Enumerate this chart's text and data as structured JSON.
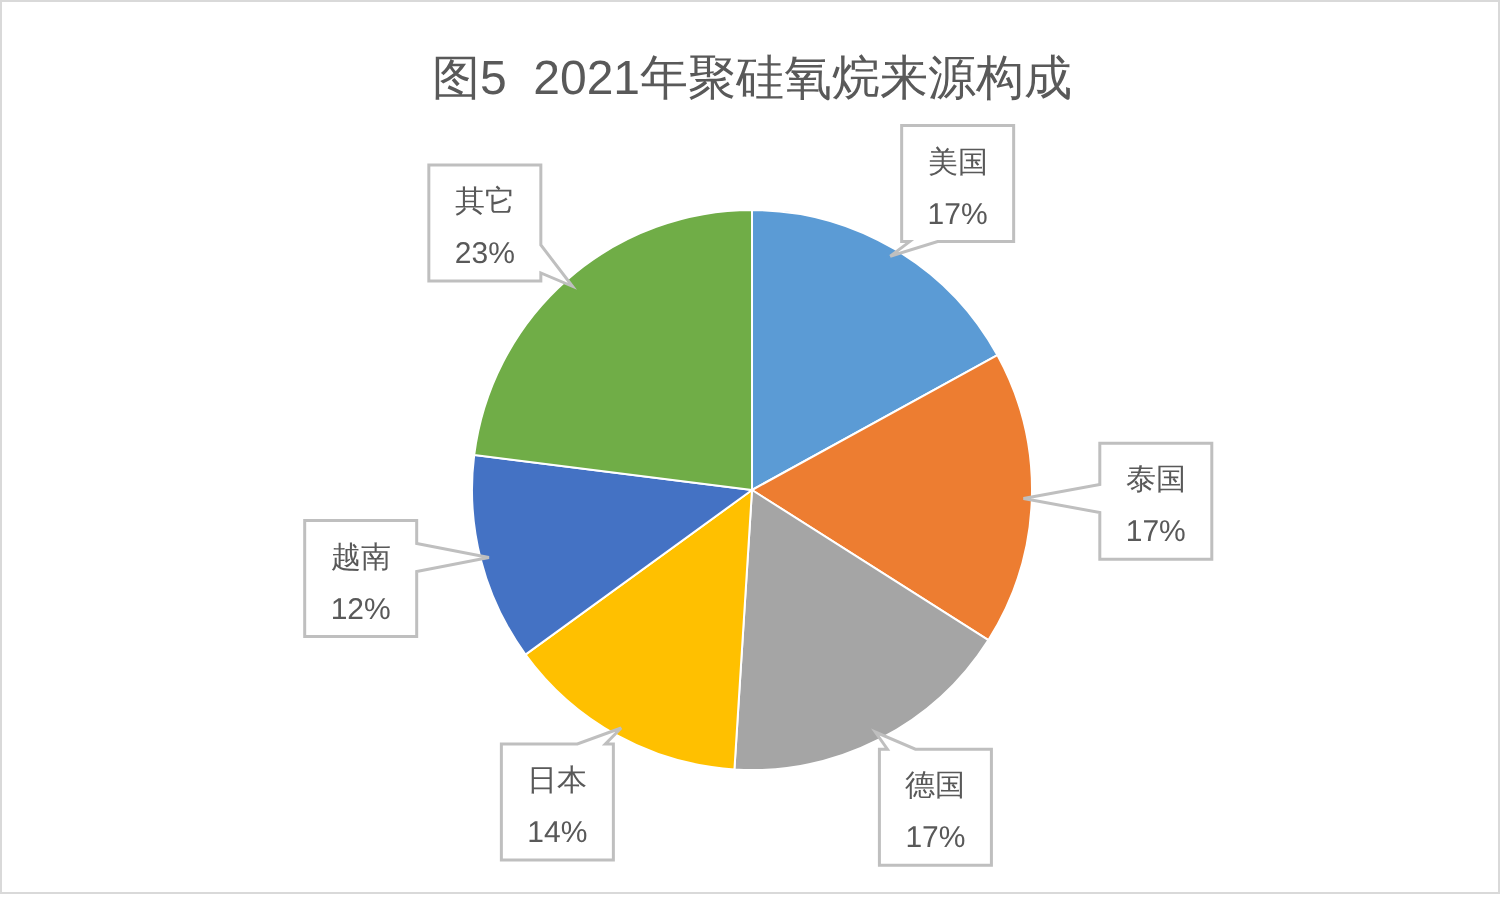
{
  "chart_data": {
    "type": "pie",
    "title": "图5  2021年聚硅氧烷来源构成",
    "categories": [
      "美国",
      "泰国",
      "德国",
      "日本",
      "越南",
      "其它"
    ],
    "values": [
      17,
      17,
      17,
      14,
      12,
      23
    ],
    "value_labels": [
      "17%",
      "17%",
      "17%",
      "14%",
      "12%",
      "23%"
    ],
    "colors": [
      "#5b9bd5",
      "#ed7d31",
      "#a5a5a5",
      "#ffc000",
      "#4472c4",
      "#70ad47"
    ]
  }
}
